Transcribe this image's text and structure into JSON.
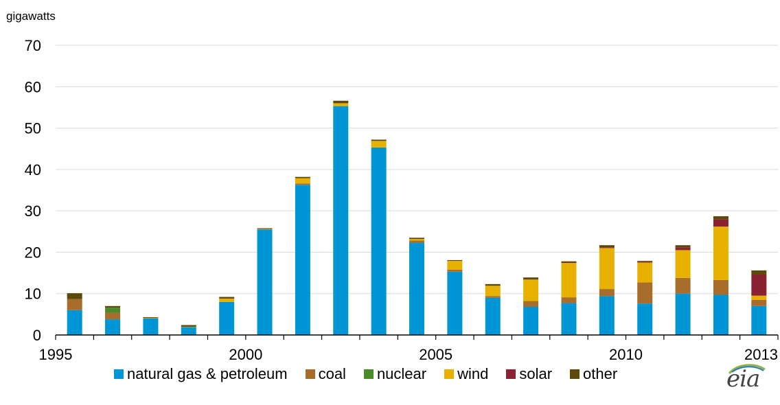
{
  "logo_text": "eia",
  "chart_data": {
    "type": "bar",
    "stacked": true,
    "title": "",
    "xlabel": "",
    "ylabel": "gigawatts",
    "ylim": [
      0,
      70
    ],
    "yticks": [
      0,
      10,
      20,
      30,
      40,
      50,
      60,
      70
    ],
    "grid": true,
    "legend_position": "bottom",
    "categories": [
      "1995",
      "1996",
      "1997",
      "1998",
      "1999",
      "2000",
      "2001",
      "2002",
      "2003",
      "2004",
      "2005",
      "2006",
      "2007",
      "2008",
      "2009",
      "2010",
      "2011",
      "2012",
      "2013"
    ],
    "xtick_labels": [
      {
        "category": "1995",
        "label": "1995"
      },
      {
        "category": "2000",
        "label": "2000"
      },
      {
        "category": "2005",
        "label": "2005"
      },
      {
        "category": "2010",
        "label": "2010"
      },
      {
        "category": "2013",
        "label": "2013"
      }
    ],
    "series": [
      {
        "name": "natural gas & petroleum",
        "color": "#0096d6",
        "values": [
          6.0,
          3.8,
          4.0,
          1.9,
          8.0,
          25.5,
          36.3,
          55.3,
          45.3,
          22.3,
          15.3,
          9.0,
          6.8,
          7.7,
          9.4,
          7.6,
          10.0,
          9.7,
          7.0
        ]
      },
      {
        "name": "coal",
        "color": "#a86d2a",
        "values": [
          2.7,
          1.6,
          0.0,
          0.0,
          0.0,
          0.0,
          0.3,
          0.0,
          0.0,
          0.5,
          0.5,
          0.4,
          1.4,
          1.4,
          1.7,
          5.1,
          3.8,
          3.6,
          1.5
        ]
      },
      {
        "name": "nuclear",
        "color": "#4a8c2a",
        "values": [
          0.0,
          1.2,
          0.0,
          0.0,
          0.0,
          0.0,
          0.0,
          0.0,
          0.0,
          0.0,
          0.0,
          0.0,
          0.0,
          0.0,
          0.0,
          0.0,
          0.0,
          0.0,
          0.0
        ]
      },
      {
        "name": "wind",
        "color": "#e8b100",
        "values": [
          0.0,
          0.0,
          0.1,
          0.1,
          0.8,
          0.1,
          1.3,
          0.7,
          1.6,
          0.4,
          2.1,
          2.5,
          5.2,
          8.3,
          9.9,
          4.8,
          6.7,
          12.9,
          1.0
        ]
      },
      {
        "name": "solar",
        "color": "#8b2234",
        "values": [
          0.0,
          0.0,
          0.0,
          0.0,
          0.0,
          0.0,
          0.0,
          0.0,
          0.0,
          0.0,
          0.0,
          0.0,
          0.0,
          0.1,
          0.2,
          0.2,
          0.7,
          1.8,
          5.1
        ]
      },
      {
        "name": "other",
        "color": "#5c4a0a",
        "values": [
          1.4,
          0.4,
          0.2,
          0.4,
          0.4,
          0.2,
          0.3,
          0.6,
          0.3,
          0.3,
          0.2,
          0.4,
          0.5,
          0.3,
          0.5,
          0.2,
          0.5,
          0.7,
          1.0
        ]
      }
    ]
  }
}
